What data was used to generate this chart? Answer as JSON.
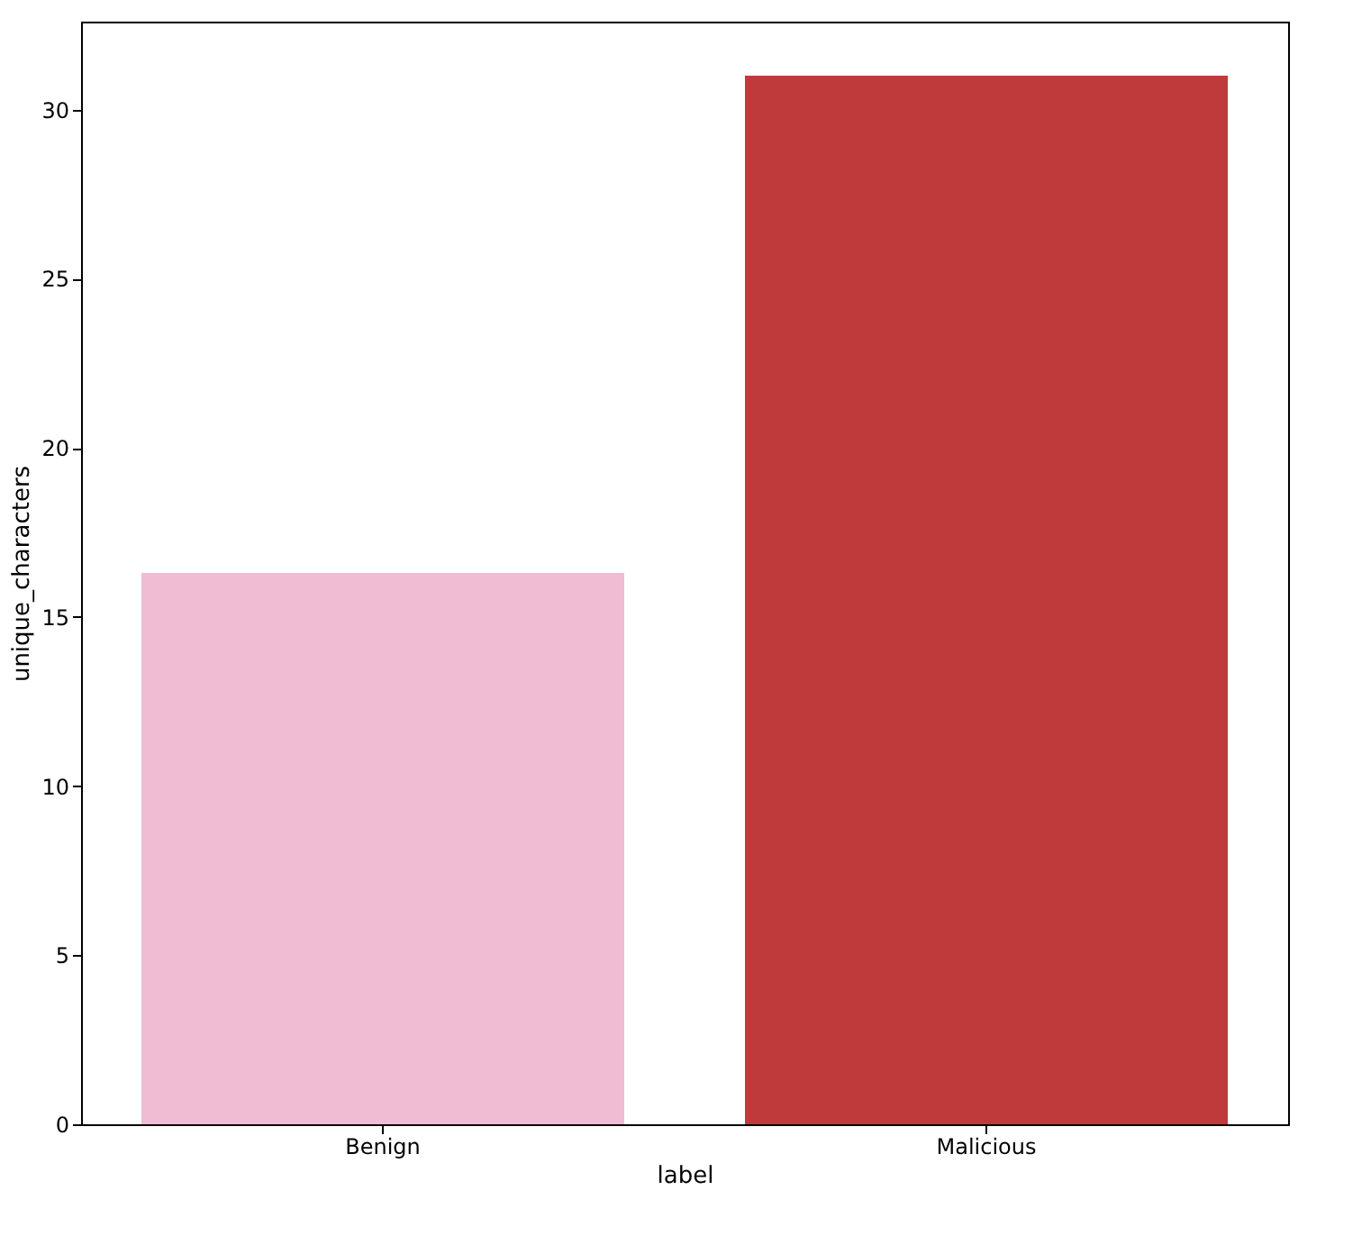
{
  "chart_data": {
    "type": "bar",
    "xlabel": "label",
    "ylabel": "unique_characters",
    "categories": [
      "Benign",
      "Malicious"
    ],
    "values": [
      16.3,
      31.0
    ],
    "colors": [
      "#f0bcd4",
      "#bf3b3b"
    ],
    "ylim": [
      0,
      32.6
    ],
    "yticks": [
      0,
      5,
      10,
      15,
      20,
      25,
      30
    ],
    "grid": false,
    "legend": false
  }
}
